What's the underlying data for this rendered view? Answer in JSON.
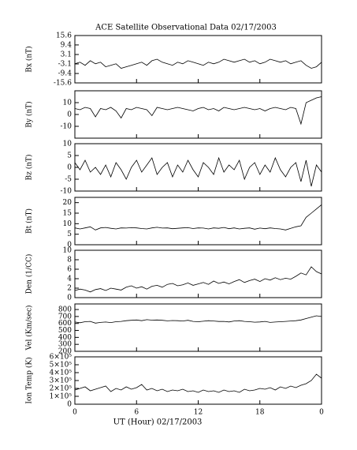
{
  "title": "ACE Satellite Observational Data   02/17/2003",
  "x_label": "UT (Hour)   02/17/2003",
  "chart_data": [
    {
      "type": "line",
      "y_label": "Bx (nT)",
      "color": "#000000",
      "xlim": [
        0,
        24
      ],
      "xticks": [
        0,
        6,
        12,
        18,
        {
          "value": 24,
          "label": "0"
        }
      ],
      "ylim": [
        -15.6,
        15.6
      ],
      "yticks": [
        -15.6,
        -9.4,
        -3.1,
        3.1,
        9.4,
        15.6
      ],
      "x": [
        0,
        0.5,
        1,
        1.5,
        2,
        2.5,
        3,
        3.5,
        4,
        4.5,
        5,
        5.5,
        6,
        6.5,
        7,
        7.5,
        8,
        8.5,
        9,
        9.5,
        10,
        10.5,
        11,
        11.5,
        12,
        12.5,
        13,
        13.5,
        14,
        14.5,
        15,
        15.5,
        16,
        16.5,
        17,
        17.5,
        18,
        18.5,
        19,
        19.5,
        20,
        20.5,
        21,
        21.5,
        22,
        22.5,
        23,
        23.5,
        24
      ],
      "values": [
        -3,
        -2,
        -4,
        -1,
        -3,
        -2,
        -5,
        -4,
        -3,
        -6,
        -5,
        -4,
        -3,
        -2,
        -4,
        -1,
        0,
        -2,
        -3,
        -4,
        -2,
        -3,
        -1,
        -2,
        -3,
        -4,
        -2,
        -3,
        -2,
        0,
        -1,
        -2,
        -1,
        0,
        -2,
        -1,
        -3,
        -2,
        0,
        -1,
        -2,
        -1,
        -3,
        -2,
        -1,
        -4,
        -6,
        -5,
        -2
      ]
    },
    {
      "type": "line",
      "y_label": "By (nT)",
      "color": "#000000",
      "xlim": [
        0,
        24
      ],
      "xticks": [
        0,
        6,
        12,
        18,
        {
          "value": 24,
          "label": "0"
        }
      ],
      "ylim": [
        -20,
        20
      ],
      "yticks": [
        -10,
        0,
        10
      ],
      "x": [
        0,
        0.5,
        1,
        1.5,
        2,
        2.5,
        3,
        3.5,
        4,
        4.5,
        5,
        5.5,
        6,
        6.5,
        7,
        7.5,
        8,
        8.5,
        9,
        9.5,
        10,
        10.5,
        11,
        11.5,
        12,
        12.5,
        13,
        13.5,
        14,
        14.5,
        15,
        15.5,
        16,
        16.5,
        17,
        17.5,
        18,
        18.5,
        19,
        19.5,
        20,
        20.5,
        21,
        21.5,
        22,
        22.5,
        23,
        23.5,
        24
      ],
      "values": [
        5,
        4,
        6,
        5,
        -2,
        5,
        4,
        6,
        3,
        -3,
        5,
        4,
        6,
        5,
        4,
        -1,
        6,
        5,
        4,
        5,
        6,
        5,
        4,
        3,
        5,
        6,
        4,
        5,
        3,
        6,
        5,
        4,
        5,
        6,
        5,
        4,
        5,
        3,
        5,
        6,
        5,
        4,
        6,
        5,
        -8,
        10,
        12,
        14,
        15
      ]
    },
    {
      "type": "line",
      "y_label": "Bz (nT)",
      "color": "#000000",
      "xlim": [
        0,
        24
      ],
      "xticks": [
        0,
        6,
        12,
        18,
        {
          "value": 24,
          "label": "0"
        }
      ],
      "ylim": [
        -10,
        10
      ],
      "yticks": [
        -10,
        -5,
        0,
        5,
        10
      ],
      "x": [
        0,
        0.5,
        1,
        1.5,
        2,
        2.5,
        3,
        3.5,
        4,
        4.5,
        5,
        5.5,
        6,
        6.5,
        7,
        7.5,
        8,
        8.5,
        9,
        9.5,
        10,
        10.5,
        11,
        11.5,
        12,
        12.5,
        13,
        13.5,
        14,
        14.5,
        15,
        15.5,
        16,
        16.5,
        17,
        17.5,
        18,
        18.5,
        19,
        19.5,
        20,
        20.5,
        21,
        21.5,
        22,
        22.5,
        23,
        23.5,
        24
      ],
      "values": [
        2,
        -1,
        3,
        -2,
        0,
        -3,
        1,
        -4,
        2,
        -1,
        -5,
        0,
        3,
        -2,
        1,
        4,
        -3,
        0,
        2,
        -4,
        1,
        -2,
        3,
        -1,
        -4,
        2,
        0,
        -3,
        4,
        -2,
        1,
        -1,
        3,
        -5,
        0,
        2,
        -3,
        1,
        -2,
        4,
        -1,
        -4,
        0,
        2,
        -6,
        3,
        -8,
        1,
        -2
      ]
    },
    {
      "type": "line",
      "y_label": "Bt (nT)",
      "color": "#000000",
      "xlim": [
        0,
        24
      ],
      "xticks": [
        0,
        6,
        12,
        18,
        {
          "value": 24,
          "label": "0"
        }
      ],
      "ylim": [
        0,
        22.5
      ],
      "yticks": [
        0,
        5,
        10,
        15,
        20
      ],
      "x": [
        0,
        0.5,
        1,
        1.5,
        2,
        2.5,
        3,
        3.5,
        4,
        4.5,
        5,
        5.5,
        6,
        6.5,
        7,
        7.5,
        8,
        8.5,
        9,
        9.5,
        10,
        10.5,
        11,
        11.5,
        12,
        12.5,
        13,
        13.5,
        14,
        14.5,
        15,
        15.5,
        16,
        16.5,
        17,
        17.5,
        18,
        18.5,
        19,
        19.5,
        20,
        20.5,
        21,
        21.5,
        22,
        22.5,
        23,
        23.5,
        24
      ],
      "values": [
        8,
        7.5,
        8,
        8.5,
        7,
        8,
        8.2,
        7.8,
        7.5,
        8,
        7.9,
        8.1,
        8,
        7.7,
        7.5,
        8,
        8.3,
        7.9,
        8,
        7.6,
        7.8,
        8,
        8.1,
        7.7,
        8,
        7.9,
        7.5,
        8,
        7.8,
        8.2,
        7.6,
        8,
        7.5,
        7.8,
        8,
        7.4,
        7.9,
        7.6,
        8,
        7.7,
        7.5,
        7,
        7.8,
        8.5,
        9,
        13,
        15,
        17,
        19
      ]
    },
    {
      "type": "line",
      "y_label": "Den (1/CC)",
      "color": "#000000",
      "xlim": [
        0,
        24
      ],
      "xticks": [
        0,
        6,
        12,
        18,
        {
          "value": 24,
          "label": "0"
        }
      ],
      "ylim": [
        0,
        10
      ],
      "yticks": [
        0,
        2,
        4,
        6,
        8,
        10
      ],
      "x": [
        0,
        0.5,
        1,
        1.5,
        2,
        2.5,
        3,
        3.5,
        4,
        4.5,
        5,
        5.5,
        6,
        6.5,
        7,
        7.5,
        8,
        8.5,
        9,
        9.5,
        10,
        10.5,
        11,
        11.5,
        12,
        12.5,
        13,
        13.5,
        14,
        14.5,
        15,
        15.5,
        16,
        16.5,
        17,
        17.5,
        18,
        18.5,
        19,
        19.5,
        20,
        20.5,
        21,
        21.5,
        22,
        22.5,
        23,
        23.5,
        24
      ],
      "values": [
        1.5,
        1.8,
        1.6,
        1.2,
        1.7,
        1.9,
        1.5,
        2,
        1.8,
        1.6,
        2.2,
        2.5,
        2,
        2.3,
        1.8,
        2.4,
        2.6,
        2.2,
        2.8,
        3,
        2.5,
        2.7,
        3.1,
        2.6,
        2.9,
        3.2,
        2.8,
        3.5,
        3,
        3.3,
        2.9,
        3.4,
        3.8,
        3.2,
        3.6,
        3.9,
        3.4,
        4,
        3.7,
        4.2,
        3.8,
        4.1,
        3.9,
        4.5,
        5.2,
        4.8,
        6.5,
        5.5,
        5
      ]
    },
    {
      "type": "line",
      "y_label": "Vel (Km/sec)",
      "color": "#000000",
      "xlim": [
        0,
        24
      ],
      "xticks": [
        0,
        6,
        12,
        18,
        {
          "value": 24,
          "label": "0"
        }
      ],
      "ylim": [
        200,
        880
      ],
      "yticks": [
        200,
        300,
        400,
        500,
        600,
        700,
        800
      ],
      "x": [
        0,
        0.5,
        1,
        1.5,
        2,
        2.5,
        3,
        3.5,
        4,
        4.5,
        5,
        5.5,
        6,
        6.5,
        7,
        7.5,
        8,
        8.5,
        9,
        9.5,
        10,
        10.5,
        11,
        11.5,
        12,
        12.5,
        13,
        13.5,
        14,
        14.5,
        15,
        15.5,
        16,
        16.5,
        17,
        17.5,
        18,
        18.5,
        19,
        19.5,
        20,
        20.5,
        21,
        21.5,
        22,
        22.5,
        23,
        23.5,
        24
      ],
      "values": [
        620,
        610,
        625,
        630,
        605,
        615,
        620,
        612,
        625,
        630,
        640,
        645,
        650,
        640,
        655,
        648,
        650,
        645,
        638,
        642,
        640,
        635,
        645,
        630,
        625,
        632,
        640,
        635,
        628,
        630,
        622,
        635,
        640,
        630,
        625,
        618,
        622,
        630,
        615,
        620,
        625,
        630,
        635,
        640,
        650,
        670,
        690,
        710,
        700
      ]
    },
    {
      "type": "line",
      "y_label": "Ion Temp (K)",
      "color": "#000000",
      "xlim": [
        0,
        24
      ],
      "xticks": [
        0,
        6,
        12,
        18,
        {
          "value": 24,
          "label": "0"
        }
      ],
      "ylim": [
        0,
        600000
      ],
      "yticks": [
        0,
        {
          "value": 100000,
          "label": "1×10⁵"
        },
        {
          "value": 200000,
          "label": "2×10⁵"
        },
        {
          "value": 300000,
          "label": "3×10⁵"
        },
        {
          "value": 400000,
          "label": "4×10⁵"
        },
        {
          "value": 500000,
          "label": "5×10⁵"
        },
        {
          "value": 600000,
          "label": "6×10⁵"
        }
      ],
      "x": [
        0,
        0.5,
        1,
        1.5,
        2,
        2.5,
        3,
        3.5,
        4,
        4.5,
        5,
        5.5,
        6,
        6.5,
        7,
        7.5,
        8,
        8.5,
        9,
        9.5,
        10,
        10.5,
        11,
        11.5,
        12,
        12.5,
        13,
        13.5,
        14,
        14.5,
        15,
        15.5,
        16,
        16.5,
        17,
        17.5,
        18,
        18.5,
        19,
        19.5,
        20,
        20.5,
        21,
        21.5,
        22,
        22.5,
        23,
        23.5,
        24
      ],
      "values": [
        180000,
        200000,
        220000,
        170000,
        190000,
        210000,
        230000,
        160000,
        200000,
        180000,
        220000,
        190000,
        210000,
        250000,
        180000,
        200000,
        170000,
        190000,
        160000,
        180000,
        170000,
        190000,
        160000,
        170000,
        150000,
        180000,
        160000,
        170000,
        150000,
        180000,
        160000,
        170000,
        150000,
        190000,
        170000,
        180000,
        200000,
        190000,
        210000,
        180000,
        220000,
        200000,
        230000,
        210000,
        240000,
        260000,
        300000,
        380000,
        330000
      ]
    }
  ]
}
